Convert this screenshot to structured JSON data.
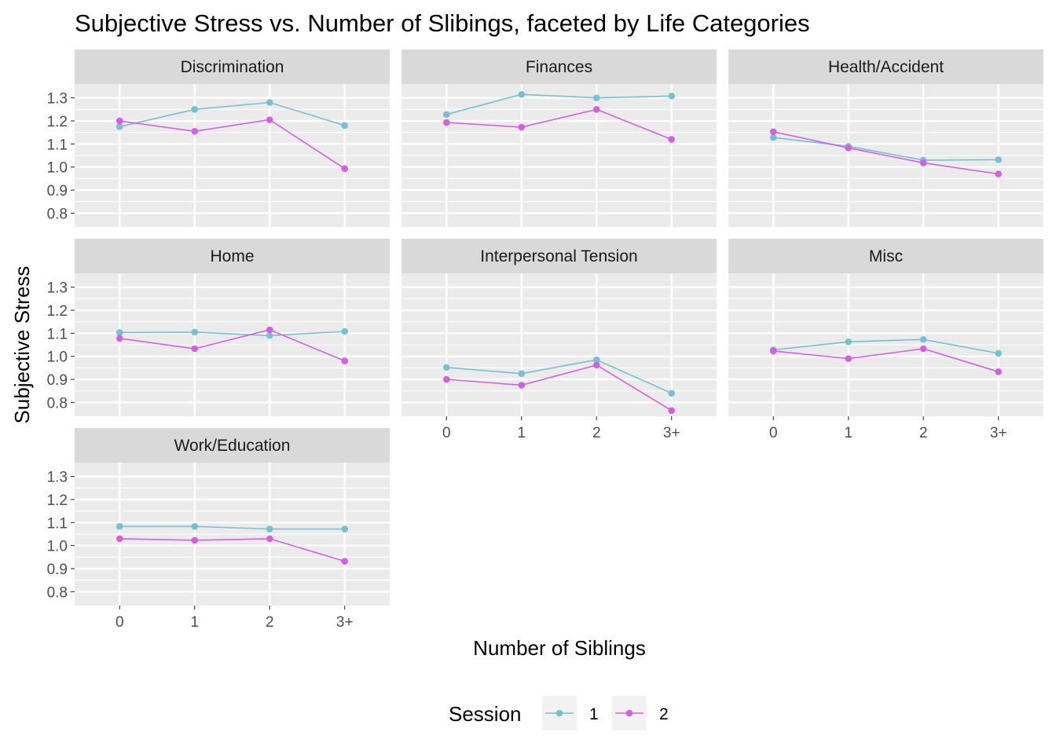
{
  "chart_data": {
    "type": "line",
    "title": "Subjective Stress vs. Number of Slibings, faceted by Life Categories",
    "xlabel": "Number of Siblings",
    "ylabel": "Subjective Stress",
    "categories": [
      "0",
      "1",
      "2",
      "3+"
    ],
    "y_ticks": [
      "0.8",
      "0.9",
      "1.0",
      "1.1",
      "1.2",
      "1.3"
    ],
    "ylim": [
      0.74,
      1.36
    ],
    "grid": true,
    "legend": {
      "title": "Session",
      "position": "bottom",
      "entries": [
        {
          "label": "1",
          "color": "#76c1d1"
        },
        {
          "label": "2",
          "color": "#d65ee6"
        }
      ]
    },
    "facets": [
      {
        "name": "Discrimination",
        "series": [
          {
            "session": "1",
            "values": [
              1.175,
              1.25,
              1.28,
              1.18
            ]
          },
          {
            "session": "2",
            "values": [
              1.2,
              1.155,
              1.205,
              0.993
            ]
          }
        ]
      },
      {
        "name": "Finances",
        "series": [
          {
            "session": "1",
            "values": [
              1.228,
              1.315,
              1.3,
              1.308
            ]
          },
          {
            "session": "2",
            "values": [
              1.193,
              1.173,
              1.25,
              1.12
            ]
          }
        ]
      },
      {
        "name": "Health/Accident",
        "series": [
          {
            "session": "1",
            "values": [
              1.128,
              1.09,
              1.03,
              1.032
            ]
          },
          {
            "session": "2",
            "values": [
              1.153,
              1.083,
              1.018,
              0.97
            ]
          }
        ]
      },
      {
        "name": "Home",
        "series": [
          {
            "session": "1",
            "values": [
              1.103,
              1.105,
              1.09,
              1.108
            ]
          },
          {
            "session": "2",
            "values": [
              1.078,
              1.033,
              1.115,
              0.98
            ]
          }
        ]
      },
      {
        "name": "Interpersonal Tension",
        "series": [
          {
            "session": "1",
            "values": [
              0.952,
              0.925,
              0.985,
              0.84
            ]
          },
          {
            "session": "2",
            "values": [
              0.9,
              0.875,
              0.962,
              0.765
            ]
          }
        ]
      },
      {
        "name": "Misc",
        "series": [
          {
            "session": "1",
            "values": [
              1.028,
              1.063,
              1.073,
              1.013
            ]
          },
          {
            "session": "2",
            "values": [
              1.023,
              0.99,
              1.033,
              0.933
            ]
          }
        ]
      },
      {
        "name": "Work/Education",
        "series": [
          {
            "session": "1",
            "values": [
              1.083,
              1.083,
              1.072,
              1.072
            ]
          },
          {
            "session": "2",
            "values": [
              1.03,
              1.023,
              1.03,
              0.932
            ]
          }
        ]
      }
    ]
  }
}
